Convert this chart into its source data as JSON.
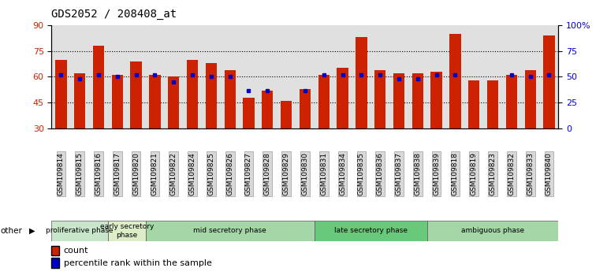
{
  "title": "GDS2052 / 208408_at",
  "samples": [
    "GSM109814",
    "GSM109815",
    "GSM109816",
    "GSM109817",
    "GSM109820",
    "GSM109821",
    "GSM109822",
    "GSM109824",
    "GSM109825",
    "GSM109826",
    "GSM109827",
    "GSM109828",
    "GSM109829",
    "GSM109830",
    "GSM109831",
    "GSM109834",
    "GSM109835",
    "GSM109836",
    "GSM109837",
    "GSM109838",
    "GSM109839",
    "GSM109818",
    "GSM109819",
    "GSM109823",
    "GSM109832",
    "GSM109833",
    "GSM109840"
  ],
  "red_values": [
    70,
    62,
    78,
    61,
    69,
    61,
    60,
    70,
    68,
    64,
    48,
    52,
    46,
    53,
    61,
    65,
    83,
    64,
    62,
    62,
    63,
    85,
    58,
    58,
    61,
    64,
    84
  ],
  "blue_values": [
    61,
    59,
    61,
    60,
    61,
    61,
    57,
    61,
    60,
    60,
    52,
    52,
    null,
    52,
    61,
    61,
    61,
    61,
    59,
    59,
    61,
    61,
    null,
    null,
    61,
    60,
    61
  ],
  "phases": [
    {
      "label": "proliferative phase",
      "start": 0,
      "end": 3,
      "color": "#c8e6c9"
    },
    {
      "label": "early secretory\nphase",
      "start": 3,
      "end": 5,
      "color": "#dcedc8"
    },
    {
      "label": "mid secretory phase",
      "start": 5,
      "end": 14,
      "color": "#a5d6a7"
    },
    {
      "label": "late secretory phase",
      "start": 14,
      "end": 20,
      "color": "#69c97a"
    },
    {
      "label": "ambiguous phase",
      "start": 20,
      "end": 27,
      "color": "#a5d6a7"
    }
  ],
  "ylim_left": [
    30,
    90
  ],
  "ylim_right": [
    0,
    100
  ],
  "bar_color": "#cc2200",
  "dot_color": "#0000cc",
  "plot_bg": "#e0e0e0",
  "tick_bg": "#d8d8d8",
  "title_fontsize": 10,
  "tick_fontsize": 6.5,
  "other_label": "other"
}
